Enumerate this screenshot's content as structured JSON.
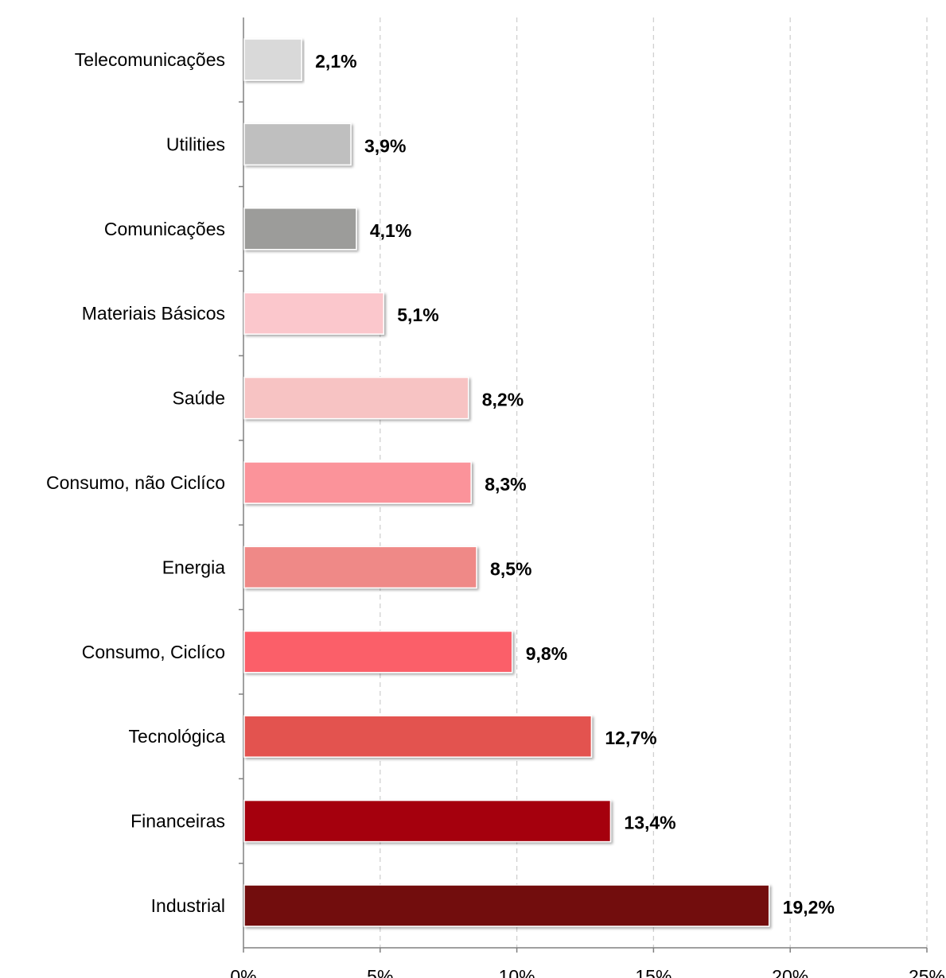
{
  "chart_data": {
    "type": "bar",
    "orientation": "horizontal",
    "categories": [
      "Telecomunicações",
      "Utilities",
      "Comunicações",
      "Materiais Básicos",
      "Saúde",
      "Consumo, não Ciclíco",
      "Energia",
      "Consumo, Ciclíco",
      "Tecnológica",
      "Financeiras",
      "Industrial"
    ],
    "values": [
      2.1,
      3.9,
      4.1,
      5.1,
      8.2,
      8.3,
      8.5,
      9.8,
      12.7,
      13.4,
      19.2
    ],
    "data_labels": [
      "2,1%",
      "3,9%",
      "4,1%",
      "5,1%",
      "8,2%",
      "8,3%",
      "8,5%",
      "9,8%",
      "12,7%",
      "13,4%",
      "19,2%"
    ],
    "bar_colors": [
      "#d9d9d9",
      "#bfbfbf",
      "#9c9c9a",
      "#fbc7cc",
      "#f7c3c3",
      "#fb939a",
      "#ef8987",
      "#fb5f69",
      "#e3534f",
      "#a50311",
      "#721111"
    ],
    "x_ticks": [
      "0%",
      "5%",
      "10%",
      "15%",
      "20%",
      "25%"
    ],
    "xlim": [
      0,
      25
    ],
    "grid": "vertical dashed",
    "legend": "none",
    "title": "",
    "xlabel": "",
    "ylabel": ""
  }
}
